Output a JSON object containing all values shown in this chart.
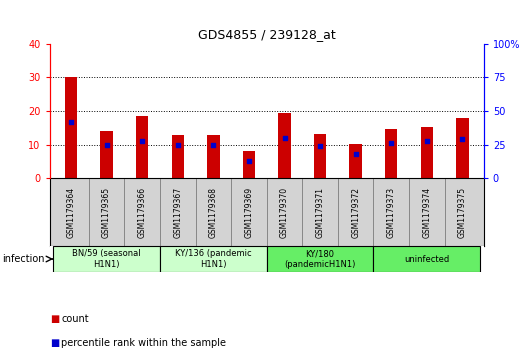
{
  "title": "GDS4855 / 239128_at",
  "samples": [
    "GSM1179364",
    "GSM1179365",
    "GSM1179366",
    "GSM1179367",
    "GSM1179368",
    "GSM1179369",
    "GSM1179370",
    "GSM1179371",
    "GSM1179372",
    "GSM1179373",
    "GSM1179374",
    "GSM1179375"
  ],
  "counts": [
    30.2,
    14.0,
    18.5,
    12.8,
    13.0,
    8.0,
    19.5,
    13.3,
    10.3,
    14.7,
    15.2,
    17.8
  ],
  "percentiles": [
    42,
    25,
    28,
    25,
    25,
    13,
    30,
    24,
    18,
    26,
    28,
    29
  ],
  "bar_color": "#cc0000",
  "dot_color": "#0000cc",
  "ylim_left": [
    0,
    40
  ],
  "ylim_right": [
    0,
    100
  ],
  "yticks_left": [
    0,
    10,
    20,
    30,
    40
  ],
  "yticks_right": [
    0,
    25,
    50,
    75,
    100
  ],
  "groups": [
    {
      "label": "BN/59 (seasonal\nH1N1)",
      "start": 0,
      "end": 3,
      "color": "#ccffcc"
    },
    {
      "label": "KY/136 (pandemic\nH1N1)",
      "start": 3,
      "end": 6,
      "color": "#ccffcc"
    },
    {
      "label": "KY/180\n(pandemicH1N1)",
      "start": 6,
      "end": 9,
      "color": "#66ee66"
    },
    {
      "label": "uninfected",
      "start": 9,
      "end": 12,
      "color": "#66ee66"
    }
  ],
  "infection_label": "infection",
  "legend_count_label": "count",
  "legend_pct_label": "percentile rank within the sample",
  "bg_color": "#ffffff",
  "cell_bg": "#d3d3d3"
}
